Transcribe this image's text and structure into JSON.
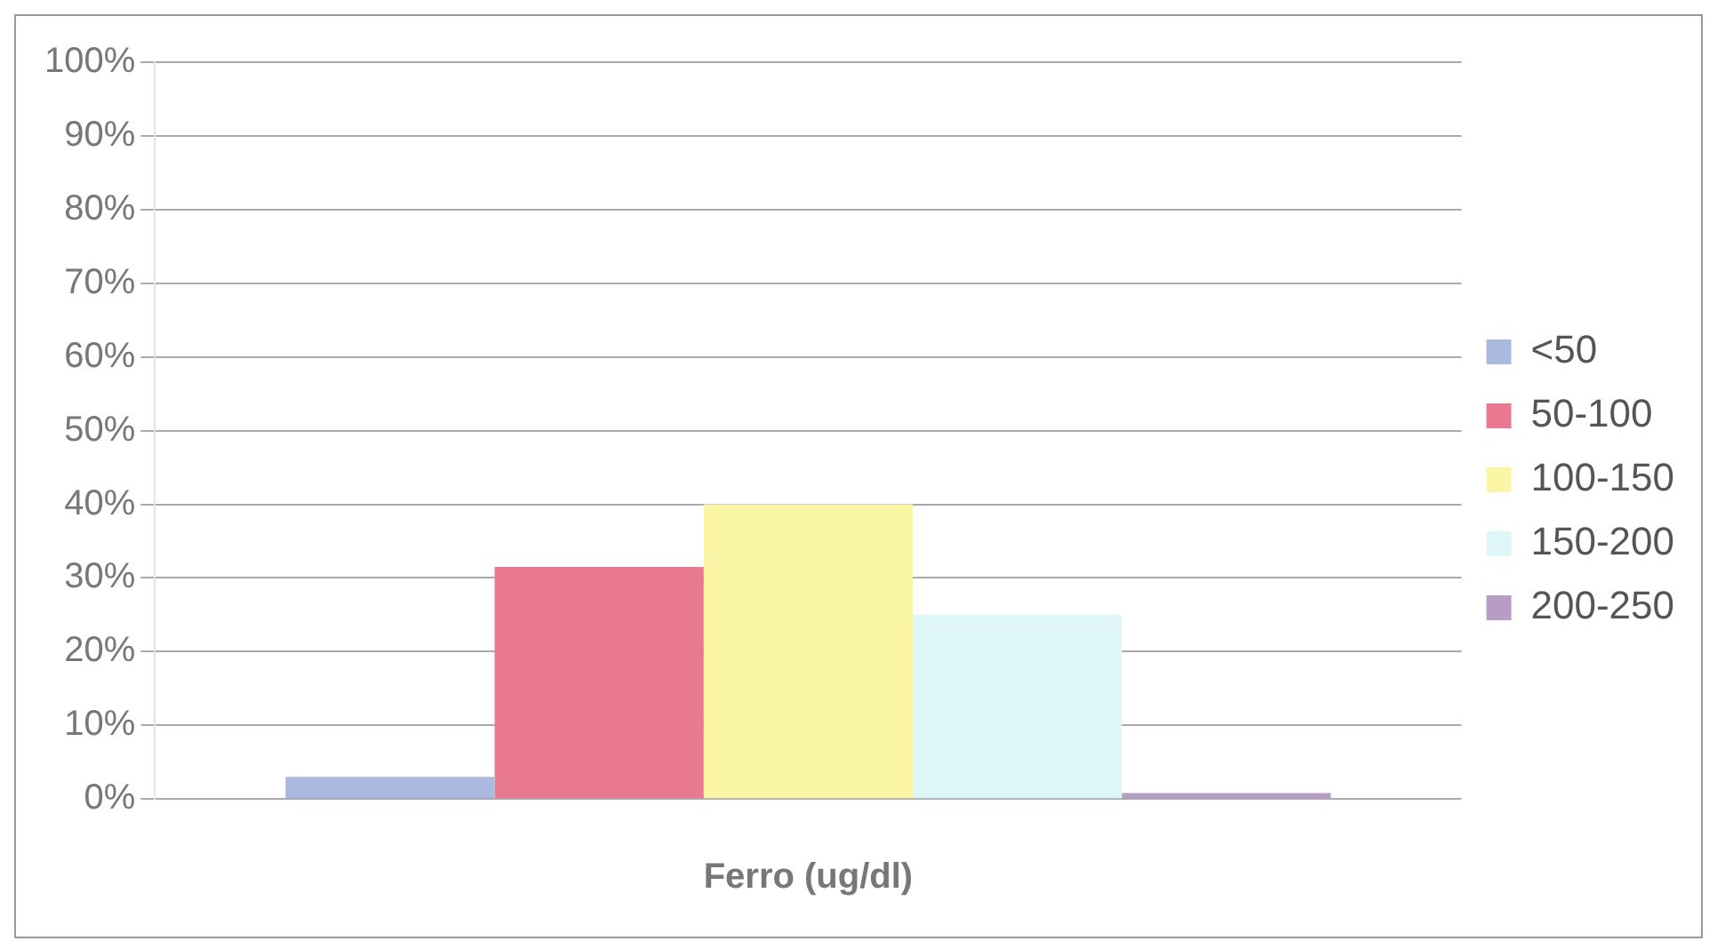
{
  "chart_data": {
    "type": "bar",
    "xlabel": "Ferro (ug/dl)",
    "categories": [
      null
    ],
    "series": [
      {
        "name": "<50",
        "color": "#a9b9e0",
        "values": [
          3
        ]
      },
      {
        "name": "50-100",
        "color": "#e8798e",
        "values": [
          31.5
        ]
      },
      {
        "name": "100-150",
        "color": "#fbf5a6",
        "values": [
          40
        ]
      },
      {
        "name": "150-200",
        "color": "#dff6f8",
        "values": [
          25
        ]
      },
      {
        "name": "200-250",
        "color": "#b89cc8",
        "values": [
          0.8
        ]
      }
    ],
    "ylim": [
      0,
      100
    ],
    "yticks": [
      {
        "value": 0,
        "label": "0%"
      },
      {
        "value": 10,
        "label": "10%"
      },
      {
        "value": 20,
        "label": "20%"
      },
      {
        "value": 30,
        "label": "30%"
      },
      {
        "value": 40,
        "label": "40%"
      },
      {
        "value": 50,
        "label": "50%"
      },
      {
        "value": 60,
        "label": "60%"
      },
      {
        "value": 70,
        "label": "70%"
      },
      {
        "value": 80,
        "label": "80%"
      },
      {
        "value": 90,
        "label": "90%"
      },
      {
        "value": 100,
        "label": "100%"
      }
    ],
    "grid": "y",
    "legend": "right"
  }
}
